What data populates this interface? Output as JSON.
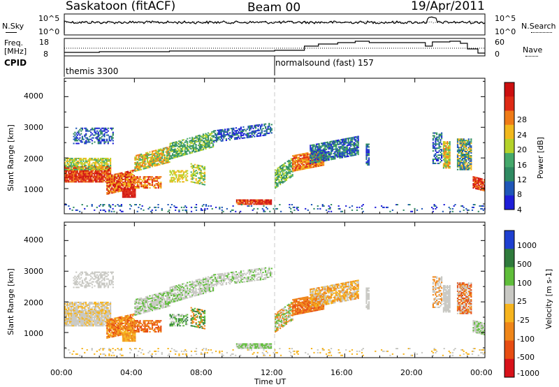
{
  "header": {
    "station": "Saskatoon (fitACF)",
    "beam": "Beam 00",
    "date": "19/Apr/2011"
  },
  "noise_panel": {
    "left_label": "N.Sky",
    "left_top": "10^5",
    "left_bottom": "10^0",
    "right_top": "10^5",
    "right_bottom": "10^0",
    "right_label": "N.Search"
  },
  "freq_panel": {
    "left_label_1": "Freq.",
    "left_label_2": "[MHz]",
    "left_top": "18",
    "left_bottom": "8",
    "right_top": "60",
    "right_bottom": "0",
    "right_label": "Nave"
  },
  "cpid_panel": {
    "label": "CPID",
    "program_1": "themis 3300",
    "program_2": "normalsound (fast) 157"
  },
  "colors": {
    "power_scale": [
      "#1e1ed8",
      "#1f56b8",
      "#2f8a62",
      "#45a86b",
      "#b4d22a",
      "#f1b81d",
      "#ef7b17",
      "#de2a15",
      "#cc0f0f"
    ],
    "velocity_scale": [
      "#1e3fd0",
      "#2f7a3c",
      "#5fbd3a",
      "#c8c8c3",
      "#f6b41e",
      "#ef8619",
      "#e74d12",
      "#d8121a"
    ]
  },
  "chart_data": [
    {
      "type": "heatmap",
      "name": "power",
      "ylabel": "Slant Range [km]",
      "yticks": [
        "1000",
        "2000",
        "3000",
        "4000"
      ],
      "ylim": [
        180,
        4600
      ],
      "xlim": [
        0,
        24
      ],
      "colorbar_label": "Power [dB]",
      "colorbar_ticks": [
        "4",
        "8",
        "12",
        "16",
        "20",
        "24",
        "28"
      ]
    },
    {
      "type": "heatmap",
      "name": "velocity",
      "ylabel": "Slant Range [km]",
      "yticks": [
        "1000",
        "2000",
        "3000",
        "4000"
      ],
      "ylim": [
        180,
        4600
      ],
      "xlim": [
        0,
        24
      ],
      "colorbar_label": "Velocity [m s-1]",
      "colorbar_ticks": [
        "1000",
        "500",
        "100",
        "25",
        "-25",
        "-100",
        "-500",
        "-1000"
      ]
    }
  ],
  "x_axis": {
    "ticks": [
      "00:00",
      "04:00",
      "08:00",
      "12:00",
      "16:00",
      "20:00",
      "00:00"
    ],
    "label": "Time UT"
  }
}
